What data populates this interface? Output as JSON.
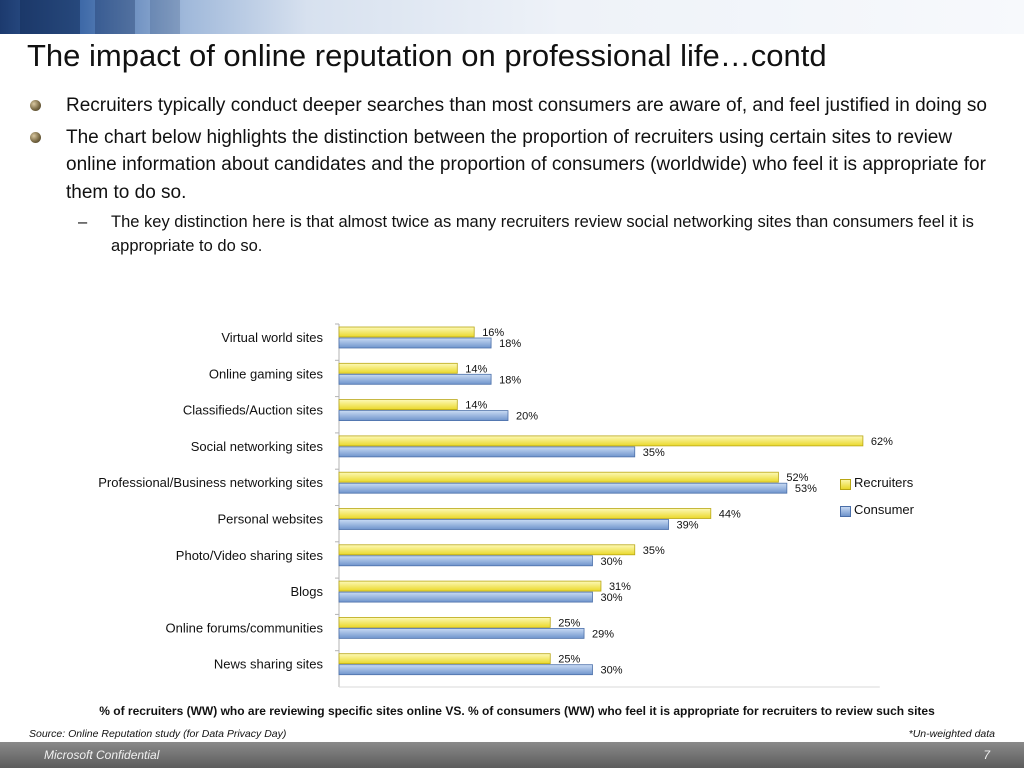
{
  "slide": {
    "title": "The impact of online reputation on professional life…contd",
    "bullets": [
      "Recruiters typically conduct deeper searches than most consumers are aware of, and feel justified in doing so",
      "The chart below highlights the distinction between the proportion of recruiters using certain sites to review online information about candidates and the proportion of consumers (worldwide) who feel it is appropriate for them to do so."
    ],
    "sub_bullet_marker": "–",
    "sub_bullet": "The key distinction here is that almost twice as many recruiters review social networking sites than consumers feel it is appropriate to do so.",
    "caption": "% of recruiters (WW) who are reviewing specific sites online VS. % of consumers (WW) who feel it is appropriate for recruiters to review such sites",
    "source": "Source: Online Reputation study (for Data Privacy Day)",
    "note": "*Un-weighted data",
    "footer_label": "Microsoft Confidential",
    "page_number": "7"
  },
  "chart_data": {
    "type": "bar",
    "orientation": "horizontal",
    "categories": [
      "Virtual world sites",
      "Online gaming sites",
      "Classifieds/Auction sites",
      "Social networking sites",
      "Professional/Business networking sites",
      "Personal websites",
      "Photo/Video sharing sites",
      "Blogs",
      "Online forums/communities",
      "News sharing sites"
    ],
    "series": [
      {
        "name": "Recruiters",
        "values": [
          16,
          14,
          14,
          62,
          52,
          44,
          35,
          31,
          25,
          25
        ],
        "color": "#f2e43a"
      },
      {
        "name": "Consumer",
        "values": [
          18,
          18,
          20,
          35,
          53,
          39,
          30,
          30,
          29,
          30
        ],
        "color": "#7fa3d8"
      }
    ],
    "value_suffix": "%",
    "legend_position": "right",
    "grid": false,
    "xlim": [
      0,
      64
    ]
  }
}
